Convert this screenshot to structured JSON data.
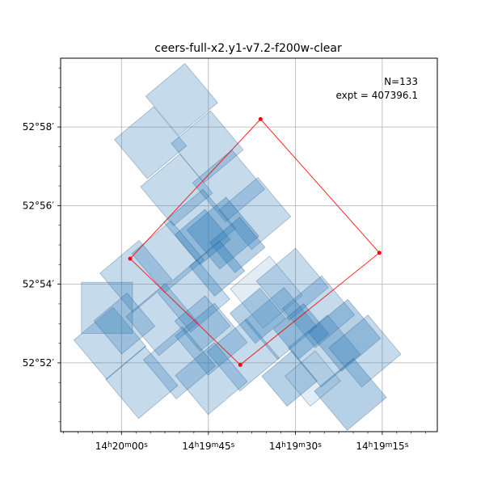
{
  "chart_data": {
    "type": "sky-footprint",
    "title": "ceers-full-x2.y1-v7.2-f200w-clear",
    "annotation": {
      "count_text": "N=133",
      "expt_text": "expt = 407396.1"
    },
    "x_ticks": [
      {
        "ra_sec": 1200,
        "label_parts": [
          "14",
          "h",
          "20",
          "m",
          "00",
          "s"
        ]
      },
      {
        "ra_sec": 1185,
        "label_parts": [
          "14",
          "h",
          "19",
          "m",
          "45",
          "s"
        ]
      },
      {
        "ra_sec": 1170,
        "label_parts": [
          "14",
          "h",
          "19",
          "m",
          "30",
          "s"
        ]
      },
      {
        "ra_sec": 1155,
        "label_parts": [
          "14",
          "h",
          "19",
          "m",
          "15",
          "s"
        ]
      }
    ],
    "y_ticks": [
      {
        "dec_min": 58,
        "label": "52°58′"
      },
      {
        "dec_min": 56,
        "label": "52°56′"
      },
      {
        "dec_min": 54,
        "label": "52°54′"
      },
      {
        "dec_min": 52,
        "label": "52°52′"
      }
    ],
    "xlim": [
      1210.5,
      1145.5
    ],
    "ylim": [
      50.25,
      59.75
    ],
    "grid": true,
    "colors": {
      "tile_fill": "#2e7bb6",
      "footprint_line": "#ff0000",
      "grid": "#b0b0b0"
    },
    "footprint_polygon": [
      {
        "ra_sec": 1198.5,
        "dec_min": 54.65
      },
      {
        "ra_sec": 1176.0,
        "dec_min": 58.2
      },
      {
        "ra_sec": 1155.5,
        "dec_min": 54.8
      },
      {
        "ra_sec": 1179.5,
        "dec_min": 51.95
      }
    ],
    "tiles": [
      {
        "ra_sec": 1189.6,
        "dec_min": 58.7,
        "angle": -40,
        "w": 1.3,
        "h": 1.3,
        "alpha": 0.28
      },
      {
        "ra_sec": 1185.2,
        "dec_min": 57.5,
        "angle": -40,
        "w": 1.3,
        "h": 1.3,
        "alpha": 0.28
      },
      {
        "ra_sec": 1195.0,
        "dec_min": 57.6,
        "angle": -40,
        "w": 1.3,
        "h": 1.3,
        "alpha": 0.28
      },
      {
        "ra_sec": 1190.5,
        "dec_min": 56.4,
        "angle": -40,
        "w": 1.3,
        "h": 1.3,
        "alpha": 0.28
      },
      {
        "ra_sec": 1181.5,
        "dec_min": 56.5,
        "angle": -40,
        "w": 1.3,
        "h": 1.3,
        "alpha": 0.28
      },
      {
        "ra_sec": 1186.5,
        "dec_min": 55.5,
        "angle": -40,
        "w": 1.3,
        "h": 1.3,
        "alpha": 0.28
      },
      {
        "ra_sec": 1177.0,
        "dec_min": 55.8,
        "angle": -40,
        "w": 1.3,
        "h": 1.3,
        "alpha": 0.28
      },
      {
        "ra_sec": 1182.5,
        "dec_min": 55.3,
        "angle": -40,
        "w": 1.3,
        "h": 1.3,
        "alpha": 0.35
      },
      {
        "ra_sec": 1186.0,
        "dec_min": 55.2,
        "angle": -40,
        "w": 1.0,
        "h": 1.0,
        "alpha": 0.35
      },
      {
        "ra_sec": 1180.0,
        "dec_min": 55.0,
        "angle": -40,
        "w": 1.0,
        "h": 1.0,
        "alpha": 0.35
      },
      {
        "ra_sec": 1183.5,
        "dec_min": 54.4,
        "angle": -40,
        "w": 1.0,
        "h": 1.0,
        "alpha": 0.35
      },
      {
        "ra_sec": 1197.5,
        "dec_min": 54.2,
        "angle": -40,
        "w": 1.3,
        "h": 1.3,
        "alpha": 0.28
      },
      {
        "ra_sec": 1192.0,
        "dec_min": 54.7,
        "angle": -40,
        "w": 1.3,
        "h": 1.3,
        "alpha": 0.28
      },
      {
        "ra_sec": 1193.0,
        "dec_min": 53.1,
        "angle": -40,
        "w": 1.3,
        "h": 1.3,
        "alpha": 0.28
      },
      {
        "ra_sec": 1187.5,
        "dec_min": 53.7,
        "angle": -40,
        "w": 1.3,
        "h": 1.3,
        "alpha": 0.28
      },
      {
        "ra_sec": 1175.0,
        "dec_min": 53.8,
        "angle": -40,
        "w": 1.3,
        "h": 1.3,
        "alpha": 0.14
      },
      {
        "ra_sec": 1170.5,
        "dec_min": 54.0,
        "angle": -40,
        "w": 1.3,
        "h": 1.3,
        "alpha": 0.28
      },
      {
        "ra_sec": 1166.0,
        "dec_min": 53.3,
        "angle": -40,
        "w": 1.3,
        "h": 1.3,
        "alpha": 0.28
      },
      {
        "ra_sec": 1172.5,
        "dec_min": 53.0,
        "angle": -40,
        "w": 1.3,
        "h": 1.3,
        "alpha": 0.28
      },
      {
        "ra_sec": 1176.5,
        "dec_min": 53.2,
        "angle": -40,
        "w": 1.0,
        "h": 1.0,
        "alpha": 0.35
      },
      {
        "ra_sec": 1169.0,
        "dec_min": 52.8,
        "angle": -40,
        "w": 1.0,
        "h": 1.0,
        "alpha": 0.35
      },
      {
        "ra_sec": 1165.0,
        "dec_min": 52.3,
        "angle": -40,
        "w": 1.3,
        "h": 1.3,
        "alpha": 0.28
      },
      {
        "ra_sec": 1161.5,
        "dec_min": 52.7,
        "angle": -40,
        "w": 1.3,
        "h": 1.3,
        "alpha": 0.35
      },
      {
        "ra_sec": 1158.0,
        "dec_min": 52.3,
        "angle": -40,
        "w": 1.3,
        "h": 1.3,
        "alpha": 0.28
      },
      {
        "ra_sec": 1160.5,
        "dec_min": 51.2,
        "angle": -40,
        "w": 1.3,
        "h": 1.3,
        "alpha": 0.35
      },
      {
        "ra_sec": 1171.0,
        "dec_min": 51.6,
        "angle": -40,
        "w": 1.0,
        "h": 1.0,
        "alpha": 0.35
      },
      {
        "ra_sec": 1167.0,
        "dec_min": 51.6,
        "angle": -40,
        "w": 1.0,
        "h": 1.0,
        "alpha": 0.14
      },
      {
        "ra_sec": 1186.0,
        "dec_min": 53.0,
        "angle": -40,
        "w": 1.0,
        "h": 1.0,
        "alpha": 0.28
      },
      {
        "ra_sec": 1184.5,
        "dec_min": 52.6,
        "angle": -40,
        "w": 1.3,
        "h": 1.3,
        "alpha": 0.28
      },
      {
        "ra_sec": 1179.0,
        "dec_min": 52.2,
        "angle": -40,
        "w": 1.3,
        "h": 1.3,
        "alpha": 0.28
      },
      {
        "ra_sec": 1190.0,
        "dec_min": 52.0,
        "angle": -40,
        "w": 1.3,
        "h": 1.3,
        "alpha": 0.28
      },
      {
        "ra_sec": 1196.5,
        "dec_min": 51.5,
        "angle": -40,
        "w": 1.3,
        "h": 1.3,
        "alpha": 0.28
      },
      {
        "ra_sec": 1202.0,
        "dec_min": 52.5,
        "angle": -40,
        "w": 1.3,
        "h": 1.3,
        "alpha": 0.28
      },
      {
        "ra_sec": 1202.5,
        "dec_min": 53.4,
        "angle": 0,
        "w": 1.3,
        "h": 1.3,
        "alpha": 0.28
      },
      {
        "ra_sec": 1199.5,
        "dec_min": 53.0,
        "angle": -40,
        "w": 1.1,
        "h": 1.1,
        "alpha": 0.28
      },
      {
        "ra_sec": 1184.5,
        "dec_min": 51.6,
        "angle": -40,
        "w": 1.3,
        "h": 1.3,
        "alpha": 0.28
      }
    ]
  }
}
